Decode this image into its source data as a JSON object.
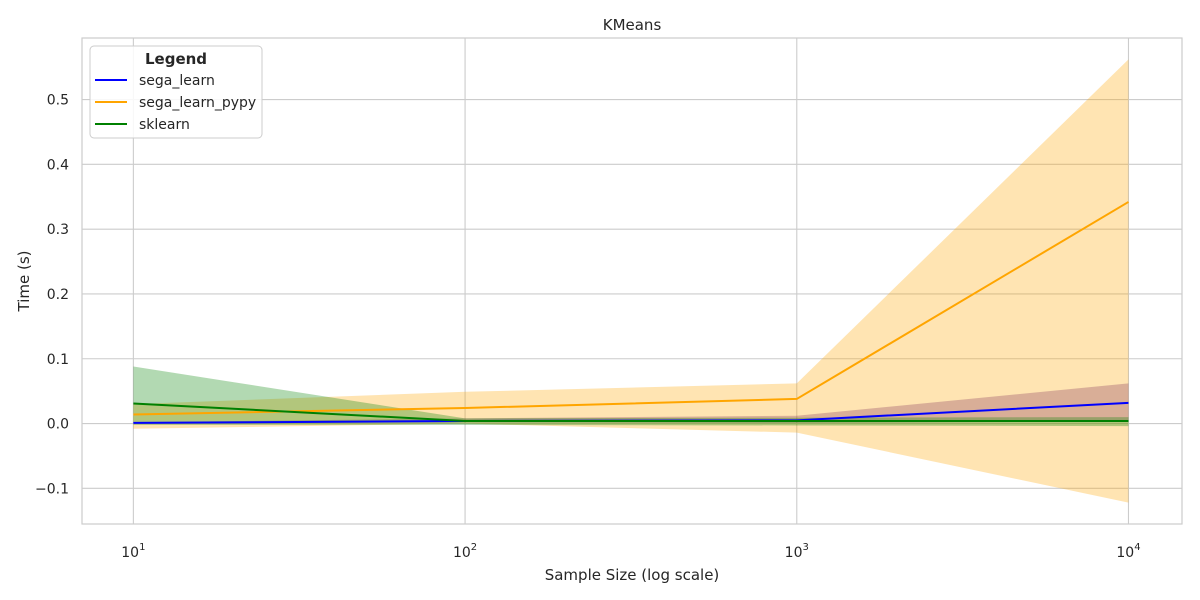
{
  "chart_data": {
    "type": "line",
    "title": "KMeans",
    "xlabel": "Sample Size (log scale)",
    "ylabel": "Time (s)",
    "x_scale": "log",
    "x": [
      10,
      100,
      1000,
      10000
    ],
    "xlim": [
      7,
      14500
    ],
    "ylim": [
      -0.155,
      0.595
    ],
    "x_ticks": [
      10,
      100,
      1000,
      10000
    ],
    "x_tick_labels": [
      {
        "base": "10",
        "exp": "1"
      },
      {
        "base": "10",
        "exp": "2"
      },
      {
        "base": "10",
        "exp": "3"
      },
      {
        "base": "10",
        "exp": "4"
      }
    ],
    "y_ticks": [
      -0.1,
      0.0,
      0.1,
      0.2,
      0.3,
      0.4,
      0.5
    ],
    "y_tick_labels": [
      "−0.1",
      "0.0",
      "0.1",
      "0.2",
      "0.3",
      "0.4",
      "0.5"
    ],
    "grid": true,
    "legend": {
      "title": "Legend",
      "position": "top-left"
    },
    "series": [
      {
        "name": "sega_learn",
        "color": "#0000ff",
        "band_color": "#4b0082",
        "values": [
          0.001,
          0.004,
          0.005,
          0.032
        ],
        "lower": [
          0.0,
          0.002,
          0.001,
          0.003
        ],
        "upper": [
          0.002,
          0.008,
          0.012,
          0.062
        ]
      },
      {
        "name": "sega_learn_pypy",
        "color": "#ffa500",
        "band_color": "#ffa500",
        "values": [
          0.014,
          0.024,
          0.038,
          0.342
        ],
        "lower": [
          -0.008,
          0.0,
          -0.014,
          -0.122
        ],
        "upper": [
          0.03,
          0.049,
          0.062,
          0.562
        ]
      },
      {
        "name": "sklearn",
        "color": "#008000",
        "band_color": "#008000",
        "values": [
          0.031,
          0.004,
          0.004,
          0.004
        ],
        "lower": [
          -0.002,
          -0.002,
          -0.003,
          -0.004
        ],
        "upper": [
          0.088,
          0.008,
          0.009,
          0.01
        ]
      }
    ]
  }
}
